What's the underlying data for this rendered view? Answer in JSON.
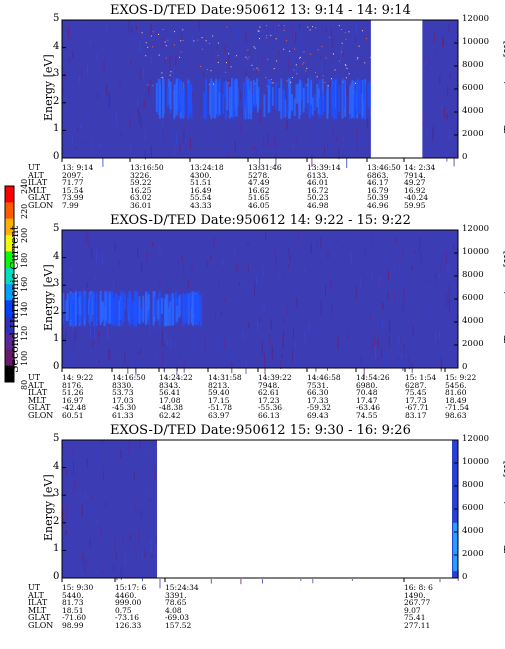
{
  "colorbar": {
    "label": "Second Harmonic Current",
    "ticks": [
      "240",
      "220",
      "200",
      "180",
      "160",
      "140",
      "120",
      "100",
      "80"
    ],
    "colors": [
      "#ff0000",
      "#ff5a00",
      "#ffb000",
      "#f0ff00",
      "#00ff00",
      "#00e0c0",
      "#00a0ff",
      "#0040ff",
      "#3030c0",
      "#5a2a9a",
      "#6a1a6a",
      "#000000"
    ]
  },
  "eph_labels": [
    "UT",
    "ALT",
    "ILAT",
    "MLT",
    "GLAT",
    "GLON"
  ],
  "chart_data": [
    {
      "type": "heatmap",
      "title": "EXOS-D/TED   Date:950612  13: 9:14 - 14: 9:14",
      "ylabel": "Energy [eV]",
      "y2label": "Temperature [K]",
      "ylim": [
        0,
        5
      ],
      "y2lim": [
        0,
        12000
      ],
      "yticks": [
        "5",
        "4",
        "3",
        "2",
        "1",
        "0"
      ],
      "y2ticks": [
        "12000",
        "10000",
        "8000",
        "6000",
        "4000",
        "2000",
        "0"
      ],
      "gap": [
        0.78,
        0.91
      ],
      "band": {
        "ymin": 1.4,
        "ymax": 2.9,
        "xstart": 0.22,
        "xend": 0.78
      },
      "ephemeris": [
        {
          "UT": "13: 9:14",
          "ALT": "2097.",
          "ILAT": "71.77",
          "MLT": "15.54",
          "GLAT": "73.99",
          "GLON": "7.99"
        },
        {
          "UT": "13:16:50",
          "ALT": "3226.",
          "ILAT": "59.22",
          "MLT": "16.25",
          "GLAT": "63.02",
          "GLON": "36.01"
        },
        {
          "UT": "13:24:18",
          "ALT": "4300.",
          "ILAT": "51.51",
          "MLT": "16.49",
          "GLAT": "55.54",
          "GLON": "43.33"
        },
        {
          "UT": "13:31:46",
          "ALT": "5278.",
          "ILAT": "47.49",
          "MLT": "16.62",
          "GLAT": "51.65",
          "GLON": "46.05"
        },
        {
          "UT": "13:39:14",
          "ALT": "6133.",
          "ILAT": "46.01",
          "MLT": "16.72",
          "GLAT": "50.23",
          "GLON": "46.98"
        },
        {
          "UT": "13:46:50",
          "ALT": "6863.",
          "ILAT": "46.17",
          "MLT": "16.79",
          "GLAT": "50.39",
          "GLON": "46.96"
        },
        {
          "UT": "14: 2:34",
          "ALT": "7914.",
          "ILAT": "49.27",
          "MLT": "16.92",
          "GLAT": "-40.24",
          "GLON": "59.95"
        }
      ]
    },
    {
      "type": "heatmap",
      "title": "EXOS-D/TED   Date:950612  14: 9:22 - 15: 9:22",
      "ylabel": "Energy [eV]",
      "y2label": "Temperature [K]",
      "ylim": [
        0,
        5
      ],
      "y2lim": [
        0,
        12000
      ],
      "yticks": [
        "5",
        "4",
        "3",
        "2",
        "1",
        "0"
      ],
      "y2ticks": [
        "12000",
        "10000",
        "8000",
        "6000",
        "4000",
        "2000",
        "0"
      ],
      "gap": null,
      "band": {
        "ymin": 1.5,
        "ymax": 2.8,
        "xstart": 0.0,
        "xend": 0.35
      },
      "ephemeris": [
        {
          "UT": "14: 9:22",
          "ALT": "8176.",
          "ILAT": "51.26",
          "MLT": "16.97",
          "GLAT": "-42.48",
          "GLON": "60.51"
        },
        {
          "UT": "14:16:50",
          "ALT": "8330.",
          "ILAT": "53.73",
          "MLT": "17.03",
          "GLAT": "-45.30",
          "GLON": "61.33"
        },
        {
          "UT": "14:24:22",
          "ALT": "8343.",
          "ILAT": "56.41",
          "MLT": "17.08",
          "GLAT": "-48.38",
          "GLON": "62.42"
        },
        {
          "UT": "14:31:58",
          "ALT": "8213.",
          "ILAT": "59.40",
          "MLT": "17.15",
          "GLAT": "-51.78",
          "GLON": "63.97"
        },
        {
          "UT": "14:39:22",
          "ALT": "7948.",
          "ILAT": "62.61",
          "MLT": "17.23",
          "GLAT": "-55.36",
          "GLON": "66.13"
        },
        {
          "UT": "14:46:58",
          "ALT": "7531.",
          "ILAT": "66.30",
          "MLT": "17.33",
          "GLAT": "-59.32",
          "GLON": "69.43"
        },
        {
          "UT": "14:54:26",
          "ALT": "6980.",
          "ILAT": "70.48",
          "MLT": "17.47",
          "GLAT": "-63.46",
          "GLON": "74.55"
        },
        {
          "UT": "15: 1:54",
          "ALT": "6287.",
          "ILAT": "75.45",
          "MLT": "17.73",
          "GLAT": "-67.71",
          "GLON": "83.17"
        },
        {
          "UT": "15: 9:22",
          "ALT": "5456.",
          "ILAT": "81.60",
          "MLT": "18.49",
          "GLAT": "-71.54",
          "GLON": "98.63"
        }
      ]
    },
    {
      "type": "heatmap",
      "title": "EXOS-D/TED   Date:950612  15: 9:30 - 16: 9:26",
      "ylabel": "Energy [eV]",
      "y2label": "Temperature [K]",
      "ylim": [
        0,
        5
      ],
      "y2lim": [
        0,
        12000
      ],
      "yticks": [
        "5",
        "4",
        "3",
        "2",
        "1",
        "0"
      ],
      "y2ticks": [
        "12000",
        "10000",
        "8000",
        "6000",
        "4000",
        "2000",
        "0"
      ],
      "gap": [
        0.24,
        0.985
      ],
      "band": null,
      "ephemeris": [
        {
          "UT": "15: 9:30",
          "ALT": "5440.",
          "ILAT": "81.73",
          "MLT": "18.51",
          "GLAT": "-71.60",
          "GLON": "98.99"
        },
        {
          "UT": "15:17: 6",
          "ALT": "4460.",
          "ILAT": "999.00",
          "MLT": "0.75",
          "GLAT": "-73.16",
          "GLON": "126.33"
        },
        {
          "UT": "15:24:34",
          "ALT": "3391.",
          "ILAT": "78.65",
          "MLT": "4.08",
          "GLAT": "-69.03",
          "GLON": "157.52"
        },
        {
          "UT": "16: 8: 6",
          "ALT": "1490.",
          "ILAT": "267.77",
          "MLT": "9.07",
          "GLAT": "75.41",
          "GLON": "277.11"
        }
      ]
    }
  ]
}
